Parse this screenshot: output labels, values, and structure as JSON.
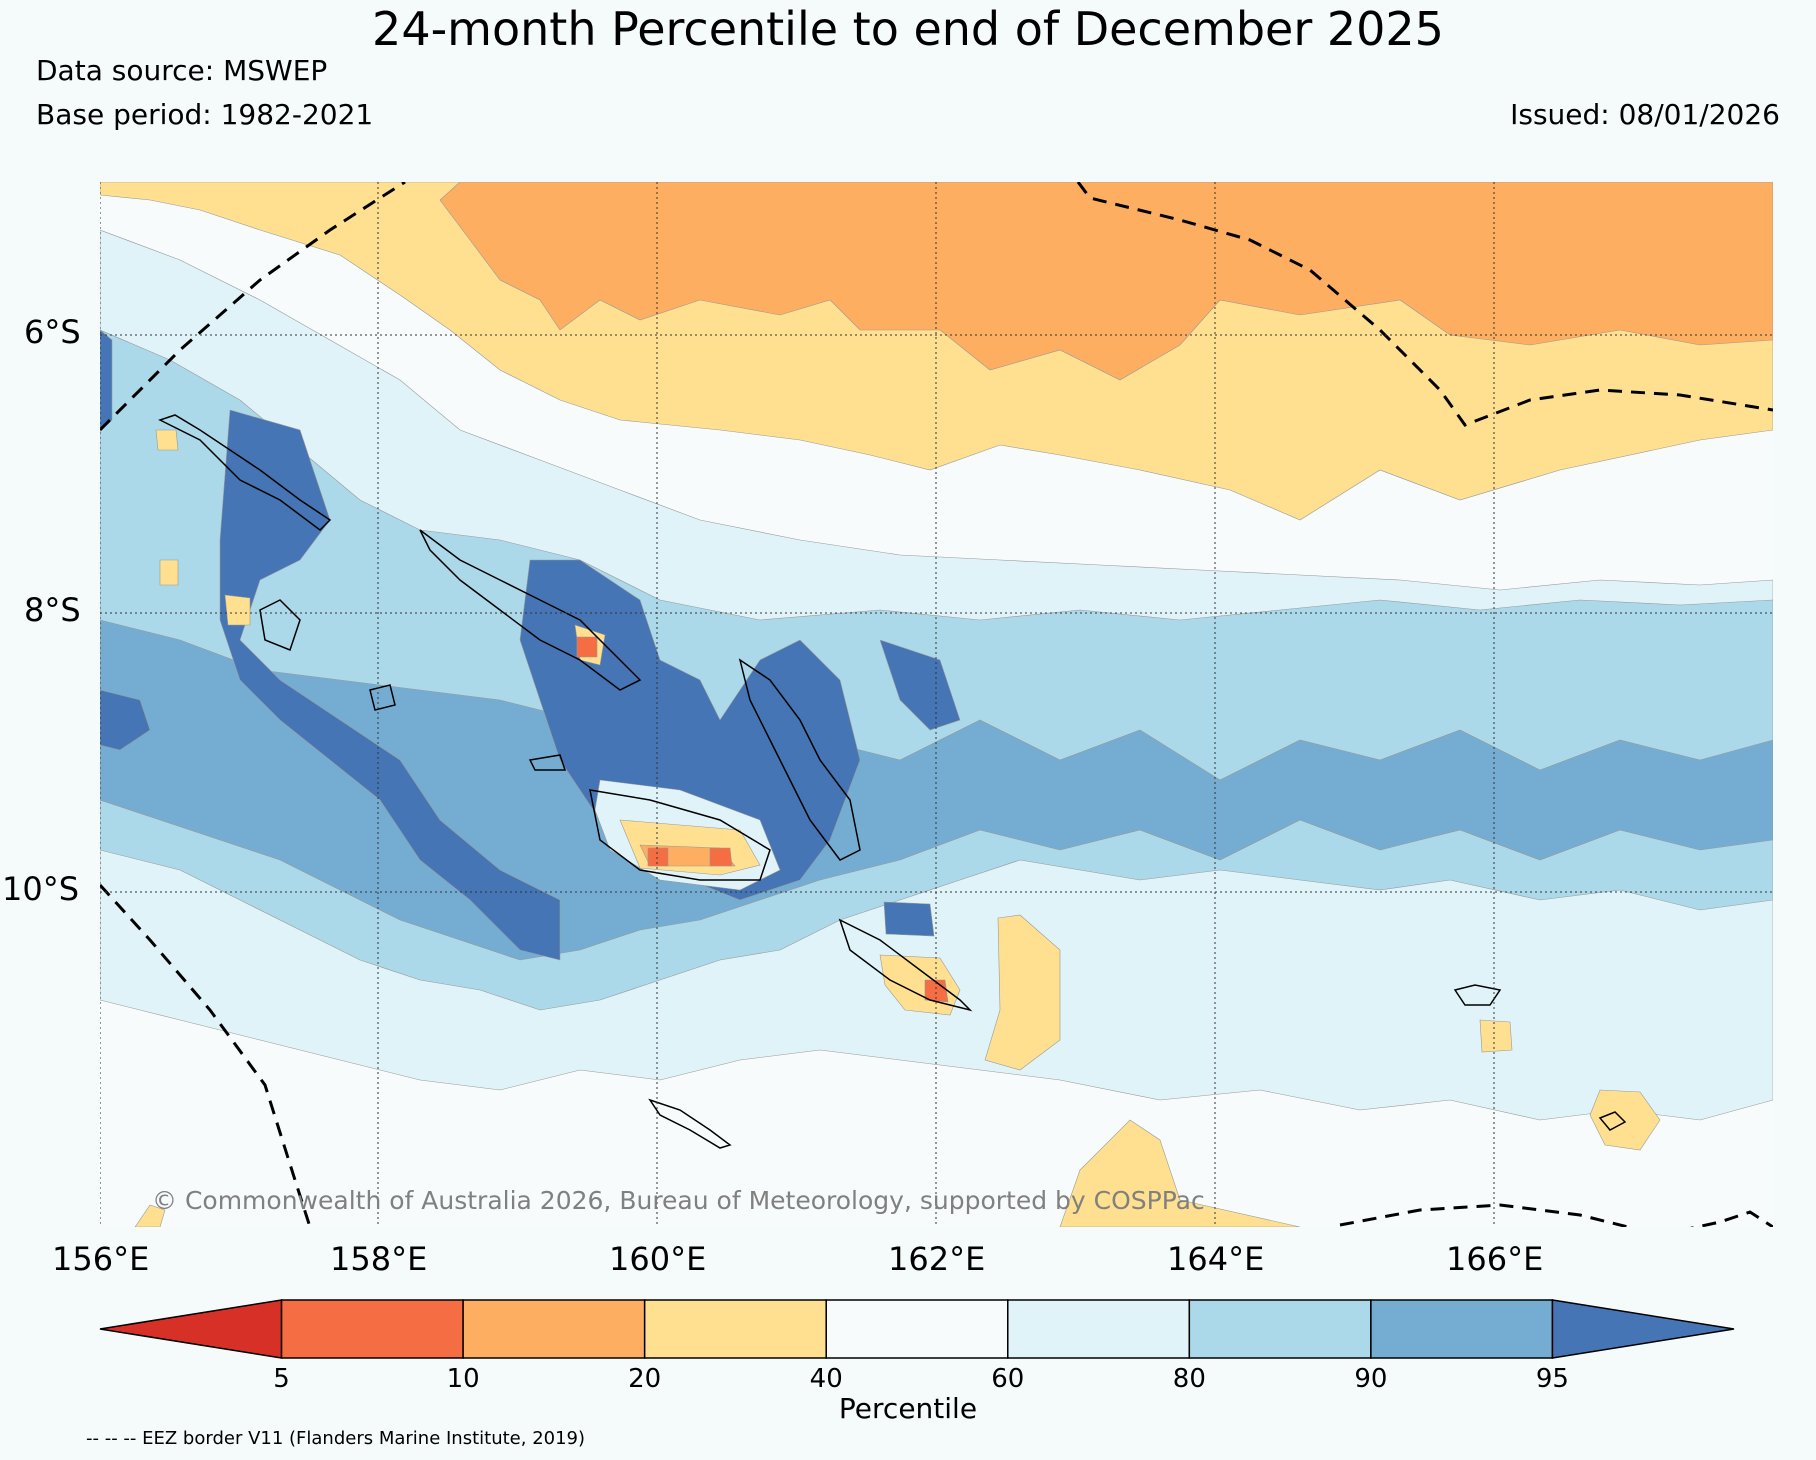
{
  "title": "24-month Percentile to end of December 2025",
  "data_source": "Data source: MSWEP",
  "base_period": "Base period: 1982-2021",
  "issued": "Issued: 08/01/2026",
  "copyright": "© Commonwealth of Australia 2026, Bureau of Meteorology, supported by COSPPac",
  "latitude_labels": [
    "6°S",
    "8°S",
    "10°S"
  ],
  "longitude_labels": [
    "156°E",
    "158°E",
    "160°E",
    "162°E",
    "164°E",
    "166°E"
  ],
  "colorbar": {
    "label": "Percentile",
    "ticks": [
      "5",
      "10",
      "20",
      "40",
      "60",
      "80",
      "90",
      "95"
    ],
    "colors": [
      "#d73027",
      "#f46d43",
      "#fdae61",
      "#fee090",
      "#f7fbfb",
      "#e0f3f8",
      "#abd9e9",
      "#74add1",
      "#4575b4"
    ]
  },
  "eez_note": "-- -- -- EEZ border V11 (Flanders Marine Institute, 2019)"
}
